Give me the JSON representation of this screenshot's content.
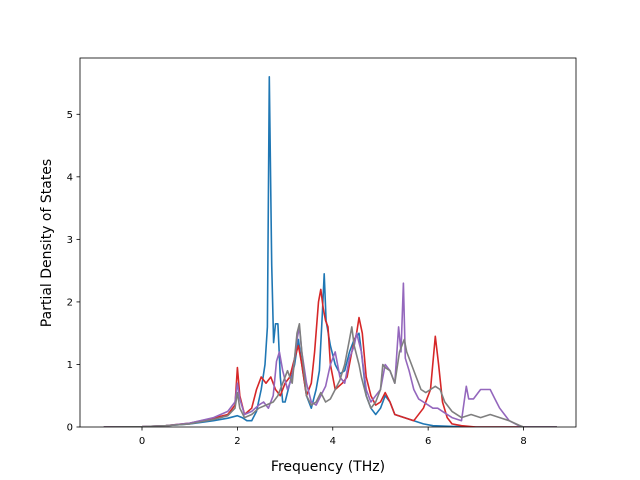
{
  "chart_data": {
    "type": "line",
    "xlabel": "Frequency (THz)",
    "ylabel": "Partial Density of States",
    "xlim": [
      -1.3,
      9.1
    ],
    "ylim": [
      0,
      5.9
    ],
    "xticks": [
      0,
      2,
      4,
      6,
      8
    ],
    "yticks": [
      0,
      1,
      2,
      3,
      4,
      5
    ],
    "grid": false,
    "legend": "none",
    "series": [
      {
        "color": "#1f77b4",
        "points": [
          [
            -0.8,
            0
          ],
          [
            0,
            0.005
          ],
          [
            0.5,
            0.02
          ],
          [
            1.0,
            0.05
          ],
          [
            1.5,
            0.1
          ],
          [
            1.8,
            0.14
          ],
          [
            2.0,
            0.18
          ],
          [
            2.1,
            0.15
          ],
          [
            2.2,
            0.1
          ],
          [
            2.3,
            0.1
          ],
          [
            2.4,
            0.25
          ],
          [
            2.5,
            0.6
          ],
          [
            2.58,
            1.0
          ],
          [
            2.63,
            1.6
          ],
          [
            2.67,
            5.6
          ],
          [
            2.72,
            2.6
          ],
          [
            2.76,
            1.35
          ],
          [
            2.8,
            1.65
          ],
          [
            2.85,
            1.65
          ],
          [
            2.9,
            0.8
          ],
          [
            2.95,
            0.4
          ],
          [
            3.0,
            0.4
          ],
          [
            3.1,
            0.7
          ],
          [
            3.2,
            1.0
          ],
          [
            3.28,
            1.4
          ],
          [
            3.35,
            1.0
          ],
          [
            3.45,
            0.5
          ],
          [
            3.55,
            0.3
          ],
          [
            3.65,
            0.6
          ],
          [
            3.72,
            0.9
          ],
          [
            3.78,
            1.8
          ],
          [
            3.82,
            2.45
          ],
          [
            3.86,
            1.7
          ],
          [
            3.95,
            1.3
          ],
          [
            4.05,
            1.0
          ],
          [
            4.15,
            0.85
          ],
          [
            4.25,
            0.9
          ],
          [
            4.35,
            1.2
          ],
          [
            4.45,
            1.4
          ],
          [
            4.55,
            1.5
          ],
          [
            4.6,
            1.2
          ],
          [
            4.7,
            0.5
          ],
          [
            4.8,
            0.3
          ],
          [
            4.9,
            0.2
          ],
          [
            5.0,
            0.3
          ],
          [
            5.1,
            0.5
          ],
          [
            5.2,
            0.4
          ],
          [
            5.3,
            0.2
          ],
          [
            5.5,
            0.15
          ],
          [
            5.7,
            0.1
          ],
          [
            5.9,
            0.05
          ],
          [
            6.1,
            0.02
          ],
          [
            6.5,
            0.01
          ],
          [
            7.0,
            0
          ],
          [
            8.0,
            0
          ],
          [
            8.7,
            0
          ]
        ]
      },
      {
        "color": "#d62728",
        "points": [
          [
            -0.8,
            0
          ],
          [
            0,
            0.005
          ],
          [
            0.5,
            0.02
          ],
          [
            1.0,
            0.06
          ],
          [
            1.5,
            0.14
          ],
          [
            1.8,
            0.2
          ],
          [
            1.95,
            0.35
          ],
          [
            2.0,
            0.95
          ],
          [
            2.05,
            0.5
          ],
          [
            2.15,
            0.2
          ],
          [
            2.3,
            0.3
          ],
          [
            2.4,
            0.6
          ],
          [
            2.5,
            0.8
          ],
          [
            2.6,
            0.7
          ],
          [
            2.7,
            0.8
          ],
          [
            2.8,
            0.6
          ],
          [
            2.9,
            0.5
          ],
          [
            3.0,
            0.7
          ],
          [
            3.1,
            0.8
          ],
          [
            3.2,
            1.1
          ],
          [
            3.28,
            1.3
          ],
          [
            3.35,
            1.0
          ],
          [
            3.45,
            0.5
          ],
          [
            3.55,
            0.7
          ],
          [
            3.62,
            1.2
          ],
          [
            3.7,
            2.0
          ],
          [
            3.75,
            2.2
          ],
          [
            3.8,
            1.9
          ],
          [
            3.85,
            1.7
          ],
          [
            3.9,
            1.6
          ],
          [
            3.95,
            1.0
          ],
          [
            4.05,
            0.6
          ],
          [
            4.2,
            0.7
          ],
          [
            4.3,
            0.8
          ],
          [
            4.4,
            1.2
          ],
          [
            4.5,
            1.5
          ],
          [
            4.55,
            1.75
          ],
          [
            4.62,
            1.5
          ],
          [
            4.7,
            0.8
          ],
          [
            4.8,
            0.5
          ],
          [
            4.9,
            0.35
          ],
          [
            5.0,
            0.4
          ],
          [
            5.1,
            0.55
          ],
          [
            5.2,
            0.4
          ],
          [
            5.3,
            0.2
          ],
          [
            5.5,
            0.15
          ],
          [
            5.7,
            0.1
          ],
          [
            5.9,
            0.3
          ],
          [
            6.05,
            0.6
          ],
          [
            6.15,
            1.45
          ],
          [
            6.22,
            1.0
          ],
          [
            6.3,
            0.4
          ],
          [
            6.4,
            0.15
          ],
          [
            6.5,
            0.05
          ],
          [
            6.7,
            0.02
          ],
          [
            7.0,
            0
          ],
          [
            8.0,
            0
          ],
          [
            8.7,
            0
          ]
        ]
      },
      {
        "color": "#9467bd",
        "points": [
          [
            -0.8,
            0
          ],
          [
            0,
            0.005
          ],
          [
            0.5,
            0.02
          ],
          [
            1.0,
            0.06
          ],
          [
            1.5,
            0.15
          ],
          [
            1.8,
            0.25
          ],
          [
            1.95,
            0.4
          ],
          [
            2.0,
            0.7
          ],
          [
            2.05,
            0.45
          ],
          [
            2.15,
            0.2
          ],
          [
            2.3,
            0.25
          ],
          [
            2.45,
            0.35
          ],
          [
            2.55,
            0.4
          ],
          [
            2.65,
            0.3
          ],
          [
            2.75,
            0.5
          ],
          [
            2.82,
            1.05
          ],
          [
            2.88,
            1.2
          ],
          [
            2.95,
            0.9
          ],
          [
            3.05,
            0.6
          ],
          [
            3.15,
            0.8
          ],
          [
            3.25,
            1.4
          ],
          [
            3.3,
            1.6
          ],
          [
            3.35,
            1.2
          ],
          [
            3.45,
            0.7
          ],
          [
            3.55,
            0.4
          ],
          [
            3.65,
            0.35
          ],
          [
            3.75,
            0.5
          ],
          [
            3.85,
            0.65
          ],
          [
            3.95,
            1.0
          ],
          [
            4.05,
            1.2
          ],
          [
            4.15,
            0.8
          ],
          [
            4.25,
            0.7
          ],
          [
            4.35,
            1.1
          ],
          [
            4.45,
            1.3
          ],
          [
            4.5,
            1.5
          ],
          [
            4.6,
            1.2
          ],
          [
            4.7,
            0.6
          ],
          [
            4.8,
            0.4
          ],
          [
            4.9,
            0.5
          ],
          [
            5.0,
            0.6
          ],
          [
            5.1,
            1.0
          ],
          [
            5.2,
            0.9
          ],
          [
            5.3,
            0.7
          ],
          [
            5.38,
            1.6
          ],
          [
            5.43,
            1.2
          ],
          [
            5.48,
            2.3
          ],
          [
            5.52,
            1.1
          ],
          [
            5.6,
            0.9
          ],
          [
            5.7,
            0.6
          ],
          [
            5.8,
            0.45
          ],
          [
            5.9,
            0.4
          ],
          [
            6.0,
            0.35
          ],
          [
            6.1,
            0.3
          ],
          [
            6.2,
            0.3
          ],
          [
            6.3,
            0.25
          ],
          [
            6.5,
            0.15
          ],
          [
            6.7,
            0.1
          ],
          [
            6.8,
            0.65
          ],
          [
            6.85,
            0.45
          ],
          [
            6.95,
            0.45
          ],
          [
            7.05,
            0.55
          ],
          [
            7.1,
            0.6
          ],
          [
            7.3,
            0.6
          ],
          [
            7.4,
            0.45
          ],
          [
            7.5,
            0.3
          ],
          [
            7.6,
            0.2
          ],
          [
            7.7,
            0.1
          ],
          [
            7.9,
            0.02
          ],
          [
            8.0,
            0
          ],
          [
            8.7,
            0
          ]
        ]
      },
      {
        "color": "#7f7f7f",
        "points": [
          [
            -0.8,
            0
          ],
          [
            0,
            0.005
          ],
          [
            0.5,
            0.02
          ],
          [
            1.0,
            0.05
          ],
          [
            1.5,
            0.12
          ],
          [
            1.8,
            0.18
          ],
          [
            1.95,
            0.3
          ],
          [
            2.0,
            0.55
          ],
          [
            2.05,
            0.3
          ],
          [
            2.15,
            0.15
          ],
          [
            2.3,
            0.2
          ],
          [
            2.45,
            0.3
          ],
          [
            2.6,
            0.35
          ],
          [
            2.75,
            0.4
          ],
          [
            2.85,
            0.5
          ],
          [
            2.95,
            0.7
          ],
          [
            3.05,
            0.9
          ],
          [
            3.15,
            0.7
          ],
          [
            3.25,
            1.5
          ],
          [
            3.3,
            1.65
          ],
          [
            3.35,
            1.2
          ],
          [
            3.45,
            0.5
          ],
          [
            3.55,
            0.35
          ],
          [
            3.65,
            0.4
          ],
          [
            3.75,
            0.55
          ],
          [
            3.85,
            0.4
          ],
          [
            3.95,
            0.45
          ],
          [
            4.05,
            0.6
          ],
          [
            4.15,
            0.75
          ],
          [
            4.25,
            1.0
          ],
          [
            4.35,
            1.4
          ],
          [
            4.4,
            1.6
          ],
          [
            4.45,
            1.3
          ],
          [
            4.55,
            1.0
          ],
          [
            4.6,
            0.8
          ],
          [
            4.7,
            0.5
          ],
          [
            4.8,
            0.3
          ],
          [
            4.9,
            0.4
          ],
          [
            5.0,
            0.6
          ],
          [
            5.05,
            1.0
          ],
          [
            5.1,
            0.95
          ],
          [
            5.2,
            0.9
          ],
          [
            5.3,
            0.7
          ],
          [
            5.4,
            1.2
          ],
          [
            5.5,
            1.4
          ],
          [
            5.55,
            1.2
          ],
          [
            5.65,
            1.0
          ],
          [
            5.75,
            0.8
          ],
          [
            5.85,
            0.6
          ],
          [
            5.95,
            0.55
          ],
          [
            6.05,
            0.6
          ],
          [
            6.15,
            0.65
          ],
          [
            6.25,
            0.6
          ],
          [
            6.35,
            0.4
          ],
          [
            6.5,
            0.25
          ],
          [
            6.7,
            0.15
          ],
          [
            6.9,
            0.2
          ],
          [
            7.1,
            0.15
          ],
          [
            7.3,
            0.2
          ],
          [
            7.5,
            0.15
          ],
          [
            7.7,
            0.1
          ],
          [
            7.9,
            0.03
          ],
          [
            8.0,
            0
          ],
          [
            8.7,
            0
          ]
        ]
      }
    ]
  }
}
